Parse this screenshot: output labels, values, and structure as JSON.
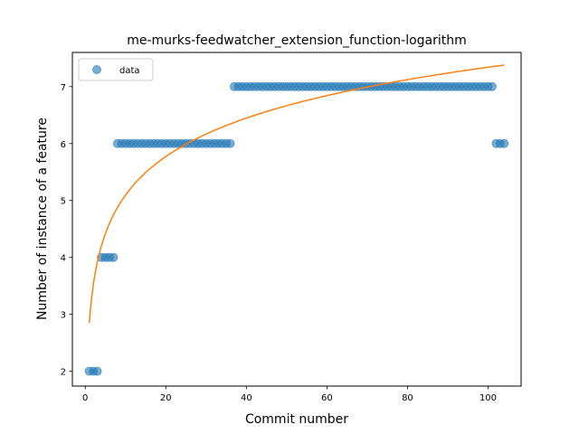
{
  "chart_data": {
    "type": "scatter",
    "title": "me-murks-feedwatcher_extension_function-logarithm",
    "xlabel": "Commit number",
    "ylabel": "Number of instance of a feature",
    "xlim": [
      -3.2,
      108.2
    ],
    "ylim": [
      1.74,
      7.6
    ],
    "xticks": [
      0,
      20,
      40,
      60,
      80,
      100
    ],
    "yticks": [
      2,
      3,
      4,
      5,
      6,
      7
    ],
    "grid": false,
    "legend_position": "top-left",
    "series": [
      {
        "name": "data",
        "kind": "markers",
        "color": "#1f77b4",
        "points": [
          [
            1,
            2
          ],
          [
            2,
            2
          ],
          [
            3,
            2
          ],
          [
            4,
            4
          ],
          [
            5,
            4
          ],
          [
            6,
            4
          ],
          [
            7,
            4
          ],
          [
            8,
            6
          ],
          [
            9,
            6
          ],
          [
            10,
            6
          ],
          [
            11,
            6
          ],
          [
            12,
            6
          ],
          [
            13,
            6
          ],
          [
            14,
            6
          ],
          [
            15,
            6
          ],
          [
            16,
            6
          ],
          [
            17,
            6
          ],
          [
            18,
            6
          ],
          [
            19,
            6
          ],
          [
            20,
            6
          ],
          [
            21,
            6
          ],
          [
            22,
            6
          ],
          [
            23,
            6
          ],
          [
            24,
            6
          ],
          [
            25,
            6
          ],
          [
            26,
            6
          ],
          [
            27,
            6
          ],
          [
            28,
            6
          ],
          [
            29,
            6
          ],
          [
            30,
            6
          ],
          [
            31,
            6
          ],
          [
            32,
            6
          ],
          [
            33,
            6
          ],
          [
            34,
            6
          ],
          [
            35,
            6
          ],
          [
            36,
            6
          ],
          [
            37,
            7
          ],
          [
            38,
            7
          ],
          [
            39,
            7
          ],
          [
            40,
            7
          ],
          [
            41,
            7
          ],
          [
            42,
            7
          ],
          [
            43,
            7
          ],
          [
            44,
            7
          ],
          [
            45,
            7
          ],
          [
            46,
            7
          ],
          [
            47,
            7
          ],
          [
            48,
            7
          ],
          [
            49,
            7
          ],
          [
            50,
            7
          ],
          [
            51,
            7
          ],
          [
            52,
            7
          ],
          [
            53,
            7
          ],
          [
            54,
            7
          ],
          [
            55,
            7
          ],
          [
            56,
            7
          ],
          [
            57,
            7
          ],
          [
            58,
            7
          ],
          [
            59,
            7
          ],
          [
            60,
            7
          ],
          [
            61,
            7
          ],
          [
            62,
            7
          ],
          [
            63,
            7
          ],
          [
            64,
            7
          ],
          [
            65,
            7
          ],
          [
            66,
            7
          ],
          [
            67,
            7
          ],
          [
            68,
            7
          ],
          [
            69,
            7
          ],
          [
            70,
            7
          ],
          [
            71,
            7
          ],
          [
            72,
            7
          ],
          [
            73,
            7
          ],
          [
            74,
            7
          ],
          [
            75,
            7
          ],
          [
            76,
            7
          ],
          [
            77,
            7
          ],
          [
            78,
            7
          ],
          [
            79,
            7
          ],
          [
            80,
            7
          ],
          [
            81,
            7
          ],
          [
            82,
            7
          ],
          [
            83,
            7
          ],
          [
            84,
            7
          ],
          [
            85,
            7
          ],
          [
            86,
            7
          ],
          [
            87,
            7
          ],
          [
            88,
            7
          ],
          [
            89,
            7
          ],
          [
            90,
            7
          ],
          [
            91,
            7
          ],
          [
            92,
            7
          ],
          [
            93,
            7
          ],
          [
            94,
            7
          ],
          [
            95,
            7
          ],
          [
            96,
            7
          ],
          [
            97,
            7
          ],
          [
            98,
            7
          ],
          [
            99,
            7
          ],
          [
            100,
            7
          ],
          [
            101,
            7
          ],
          [
            102,
            6
          ],
          [
            103,
            6
          ],
          [
            104,
            6
          ]
        ]
      },
      {
        "kind": "line",
        "color": "#ff7f0e",
        "fit": {
          "function": "a + b*ln(x)",
          "a": 2.85,
          "b": 0.975
        },
        "x_range": [
          1,
          104
        ]
      }
    ]
  }
}
